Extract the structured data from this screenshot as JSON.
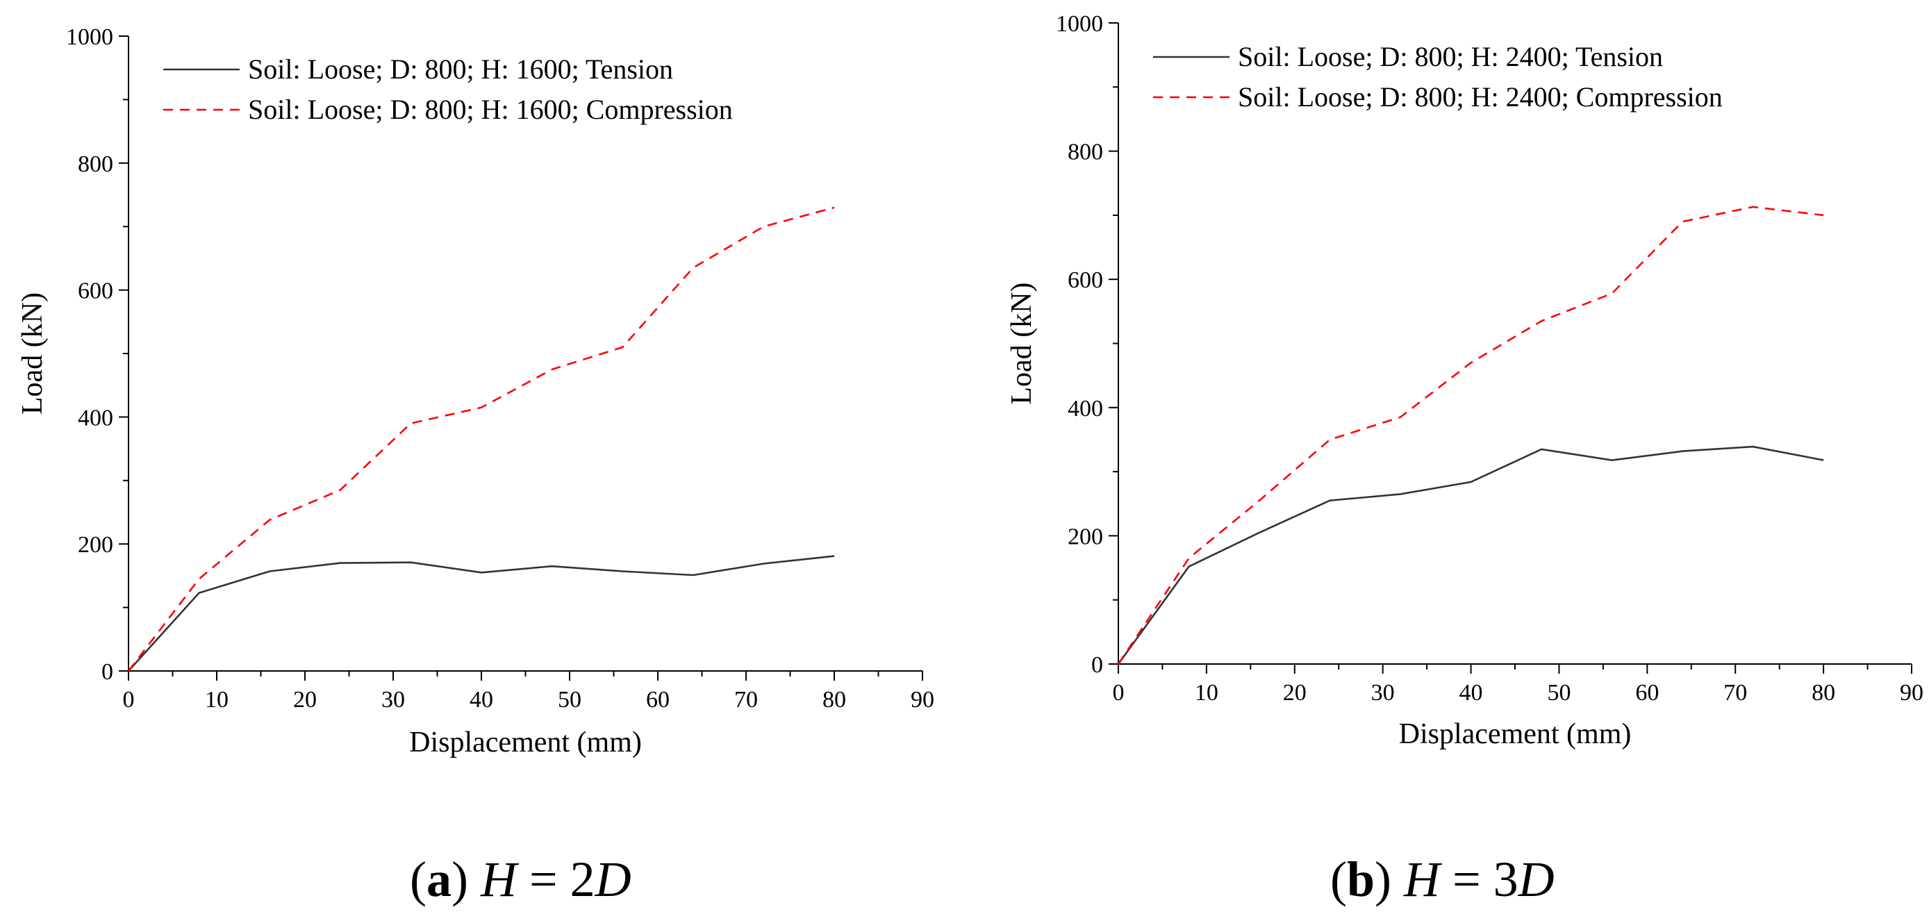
{
  "chart_data": [
    {
      "type": "line",
      "caption": {
        "letter": "a",
        "lhs": "H",
        "eq": " = 2",
        "rhs": "D"
      },
      "xlabel": "Displacement (mm)",
      "ylabel": "Load (kN)",
      "xlim": [
        0,
        90
      ],
      "ylim": [
        0,
        1000
      ],
      "xticks": [
        0,
        10,
        20,
        30,
        40,
        50,
        60,
        70,
        80,
        90
      ],
      "yticks": [
        0,
        200,
        400,
        600,
        800,
        1000
      ],
      "grid": false,
      "legend_position": "top-left",
      "series": [
        {
          "name": "Soil: Loose; D: 800; H: 1600; Tension",
          "color": "#333333",
          "dash": "solid",
          "x": [
            0,
            8,
            16,
            24,
            32,
            40,
            48,
            56,
            64,
            72,
            80
          ],
          "y": [
            0,
            123,
            157,
            170,
            171,
            155,
            165,
            157,
            151,
            169,
            181
          ]
        },
        {
          "name": "Soil: Loose; D: 800; H: 1600; Compression",
          "color": "#ff0000",
          "dash": "dashed",
          "x": [
            0,
            8,
            16,
            24,
            32,
            40,
            48,
            56,
            64,
            72,
            80
          ],
          "y": [
            0,
            145,
            238,
            285,
            390,
            415,
            475,
            510,
            635,
            700,
            730
          ]
        }
      ]
    },
    {
      "type": "line",
      "caption": {
        "letter": "b",
        "lhs": "H",
        "eq": " = 3",
        "rhs": "D"
      },
      "xlabel": "Displacement (mm)",
      "ylabel": "Load (kN)",
      "xlim": [
        0,
        90
      ],
      "ylim": [
        0,
        1000
      ],
      "xticks": [
        0,
        10,
        20,
        30,
        40,
        50,
        60,
        70,
        80,
        90
      ],
      "yticks": [
        0,
        200,
        400,
        600,
        800,
        1000
      ],
      "grid": false,
      "legend_position": "top-left",
      "series": [
        {
          "name": "Soil: Loose; D: 800; H: 2400; Tension",
          "color": "#333333",
          "dash": "solid",
          "x": [
            0,
            8,
            16,
            24,
            32,
            40,
            48,
            56,
            64,
            72,
            80
          ],
          "y": [
            0,
            152,
            205,
            255,
            265,
            284,
            335,
            318,
            332,
            339,
            318
          ]
        },
        {
          "name": "Soil: Loose; D: 800; H: 2400; Compression",
          "color": "#ff0000",
          "dash": "dashed",
          "x": [
            0,
            8,
            16,
            24,
            32,
            40,
            48,
            56,
            64,
            72,
            80
          ],
          "y": [
            0,
            165,
            255,
            350,
            385,
            470,
            535,
            578,
            690,
            713,
            700
          ]
        }
      ]
    }
  ]
}
